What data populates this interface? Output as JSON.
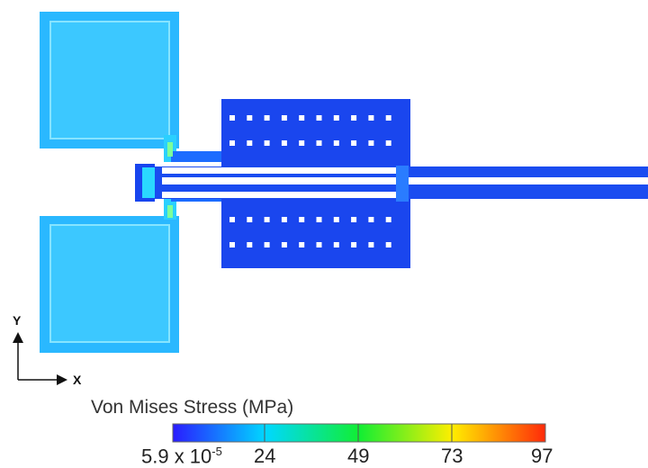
{
  "legend": {
    "title": "Von Mises Stress (MPa)",
    "colors": [
      "#2a1cff",
      "#00d8ff",
      "#11ee33",
      "#ffee00",
      "#ff2a0a"
    ],
    "ticks": {
      "t0_base": "5.9 x 10",
      "t0_exp": "-5",
      "t1": "24",
      "t2": "49",
      "t3": "73",
      "t4": "97"
    }
  },
  "axes": {
    "y": "Y",
    "x": "X"
  },
  "regions": {
    "pad_color": "#33c4ff",
    "pad_edge_color": "#7be0ff",
    "comb_color": "#1a4cf0",
    "beam_color": "#1f55f5",
    "hole_color": "#ffffff"
  }
}
